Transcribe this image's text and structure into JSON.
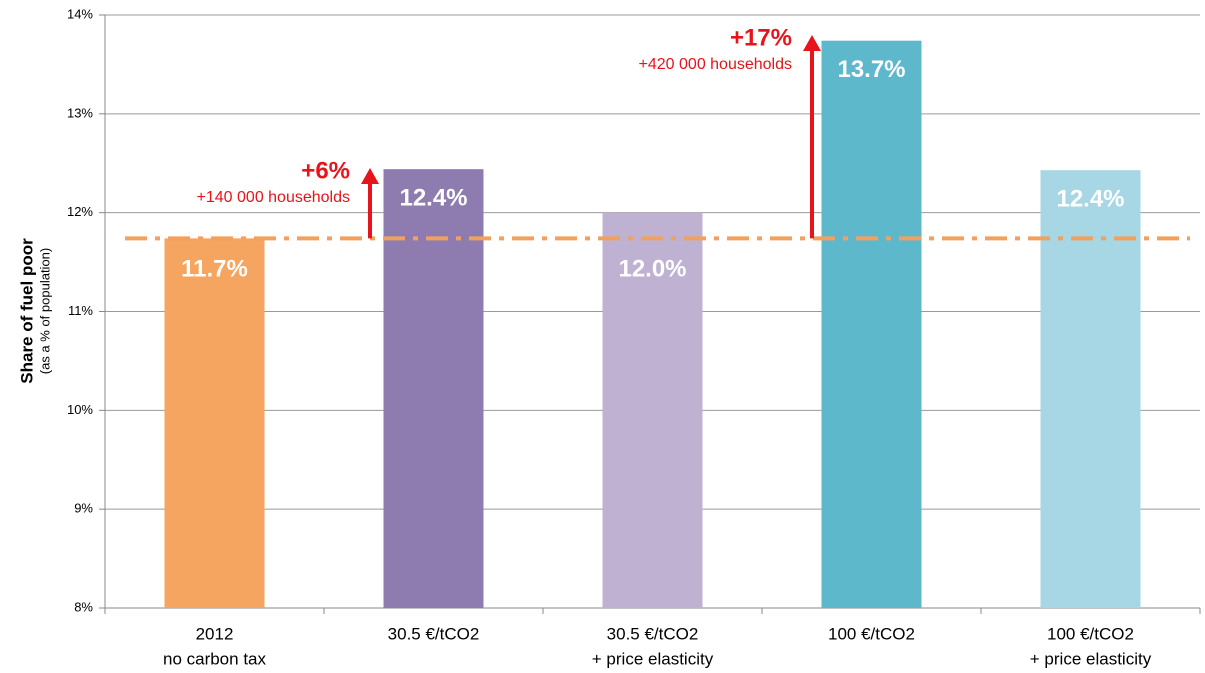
{
  "chart_data": {
    "type": "bar",
    "y_label": "Share of fuel poor",
    "y_sublabel": "(as a % of population)",
    "categories": [
      [
        "2012",
        "no carbon tax"
      ],
      [
        "30.5 €/tCO2"
      ],
      [
        "30.5 €/tCO2",
        "+ price elasticity"
      ],
      [
        "100 €/tCO2"
      ],
      [
        "100 €/tCO2",
        "+ price elasticity"
      ]
    ],
    "values": [
      11.74,
      12.44,
      12.0,
      13.74,
      12.43
    ],
    "value_labels": [
      "11.7%",
      "12.4%",
      "12.0%",
      "13.7%",
      "12.4%"
    ],
    "colors": [
      "#f5a55f",
      "#8e7cb0",
      "#bfb1d1",
      "#5eb8cc",
      "#a7d6e4"
    ],
    "baseline": 11.74,
    "baseline_color": "#f3a05e",
    "annotations": [
      {
        "change": "+6%",
        "households": "+140 000 households"
      },
      {
        "change": "+17%",
        "households": "+420 000 households"
      }
    ],
    "annotation_color": "#e8141b",
    "ylim": [
      8,
      14
    ],
    "yticks": [
      {
        "value": 8,
        "label": "8%"
      },
      {
        "value": 9,
        "label": "9%"
      },
      {
        "value": 10,
        "label": "10%"
      },
      {
        "value": 11,
        "label": "11%"
      },
      {
        "value": 12,
        "label": "12%"
      },
      {
        "value": 13,
        "label": "13%"
      },
      {
        "value": 14,
        "label": "14%"
      }
    ],
    "grid": true
  }
}
